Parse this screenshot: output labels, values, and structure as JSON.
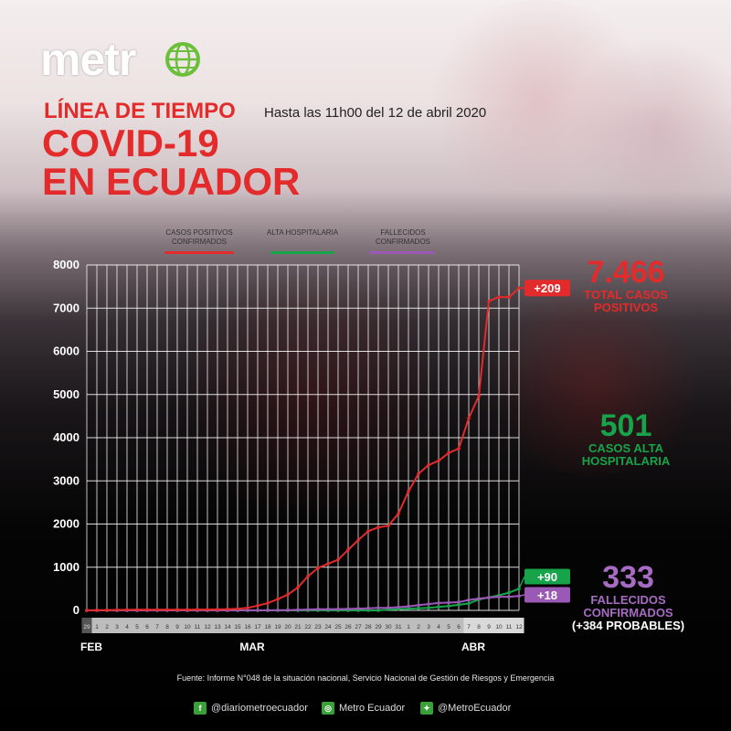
{
  "brand": {
    "logo": "metr",
    "icon": "globe-icon"
  },
  "header": {
    "title_line1": "LÍNEA DE TIEMPO",
    "subtitle": "Hasta las 11h00 del 12 de abril 2020",
    "title_line2": "COVID-19",
    "title_line3": "EN ECUADOR"
  },
  "colors": {
    "positivos": "#e32b2b",
    "alta": "#17a34a",
    "fallecidos": "#9b59b6"
  },
  "legend": {
    "positivos": "CASOS POSITIVOS CONFIRMADOS",
    "alta": "ALTA HOSPITALARIA",
    "fallecidos": "FALLECIDOS CONFIRMADOS"
  },
  "totals": {
    "positivos_value": "7.466",
    "positivos_label_1": "TOTAL CASOS",
    "positivos_label_2": "POSITIVOS",
    "alta_value": "501",
    "alta_label_1": "CASOS ALTA",
    "alta_label_2": "HOSPITALARIA",
    "fallecidos_value": "333",
    "fallecidos_label_1": "FALLECIDOS",
    "fallecidos_label_2": "CONFIRMADOS",
    "fallecidos_label_3": "(+384 PROBABLES)"
  },
  "chart_data": {
    "type": "line",
    "ylim": [
      0,
      8000
    ],
    "yticks": [
      0,
      1000,
      2000,
      3000,
      4000,
      5000,
      6000,
      7000,
      8000
    ],
    "x": [
      "29",
      "1",
      "2",
      "3",
      "4",
      "5",
      "6",
      "7",
      "8",
      "9",
      "10",
      "11",
      "12",
      "13",
      "14",
      "15",
      "16",
      "17",
      "18",
      "19",
      "20",
      "21",
      "22",
      "23",
      "24",
      "25",
      "26",
      "27",
      "28",
      "29",
      "30",
      "31",
      "1",
      "2",
      "3",
      "4",
      "5",
      "6",
      "7",
      "8",
      "9",
      "10",
      "11",
      "12"
    ],
    "months": [
      {
        "label": "FEB",
        "index": 0
      },
      {
        "label": "MAR",
        "index": 16
      },
      {
        "label": "ABR",
        "index": 38
      }
    ],
    "series": [
      {
        "key": "positivos",
        "name": "CASOS POSITIVOS CONFIRMADOS",
        "badge": "+209",
        "values": [
          1,
          6,
          7,
          10,
          13,
          14,
          14,
          15,
          15,
          17,
          17,
          19,
          19,
          23,
          28,
          37,
          58,
          111,
          168,
          260,
          367,
          532,
          789,
          981,
          1082,
          1173,
          1403,
          1627,
          1835,
          1924,
          1962,
          2240,
          2758,
          3163,
          3368,
          3465,
          3646,
          3747,
          4450,
          4965,
          7161,
          7257,
          7257,
          7466
        ]
      },
      {
        "key": "alta",
        "name": "ALTA HOSPITALARIA",
        "badge": "+90",
        "values": [
          0,
          0,
          0,
          0,
          0,
          0,
          0,
          0,
          0,
          0,
          0,
          0,
          0,
          0,
          0,
          0,
          0,
          0,
          0,
          0,
          0,
          0,
          0,
          0,
          0,
          0,
          0,
          0,
          0,
          0,
          20,
          30,
          40,
          50,
          60,
          80,
          100,
          130,
          160,
          250,
          300,
          350,
          411,
          501
        ]
      },
      {
        "key": "fallecidos",
        "name": "FALLECIDOS CONFIRMADOS",
        "badge": "+18",
        "values": [
          0,
          0,
          0,
          0,
          0,
          0,
          0,
          0,
          0,
          0,
          0,
          0,
          0,
          0,
          0,
          0,
          2,
          2,
          3,
          5,
          7,
          12,
          18,
          27,
          28,
          29,
          34,
          41,
          48,
          60,
          62,
          75,
          93,
          120,
          145,
          172,
          180,
          191,
          242,
          272,
          297,
          315,
          315,
          333
        ]
      }
    ]
  },
  "footer": {
    "source": "Fuente: Informe N°048 de la situación nacional, Servicio Nacional de Gestión de Riesgos y Emergencia",
    "facebook": "@diariometroecuador",
    "instagram": "Metro Ecuador",
    "twitter": "@MetroEcuador"
  }
}
